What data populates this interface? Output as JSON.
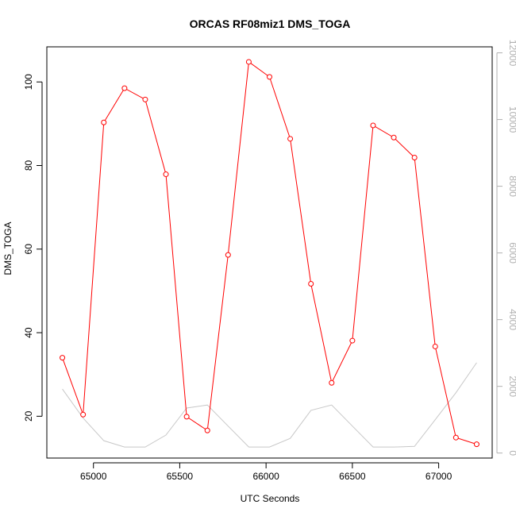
{
  "chart_data": {
    "type": "line",
    "title": "ORCAS RF08miz1 DMS_TOGA",
    "xlabel": "UTC Seconds",
    "ylabel": "DMS_TOGA",
    "xlim": [
      64730,
      67310
    ],
    "ylim": [
      10,
      108.4
    ],
    "y2lim": [
      -150,
      12180
    ],
    "x_ticks": [
      65000,
      65500,
      66000,
      66500,
      67000
    ],
    "y_ticks": [
      20,
      40,
      60,
      80,
      100
    ],
    "y2_ticks": [
      0,
      2000,
      4000,
      6000,
      8000,
      10000,
      12000
    ],
    "series": [
      {
        "axis": "left",
        "color": "#ff0000",
        "markers": "open-circle",
        "x": [
          64820,
          64940,
          65060,
          65180,
          65300,
          65420,
          65540,
          65660,
          65780,
          65900,
          66020,
          66140,
          66260,
          66380,
          66500,
          66620,
          66740,
          66860,
          66980,
          67100,
          67220
        ],
        "values": [
          34.0,
          20.4,
          90.3,
          98.5,
          95.8,
          77.9,
          19.9,
          16.6,
          58.6,
          104.8,
          101.2,
          86.4,
          51.7,
          28.0,
          38.1,
          89.6,
          86.7,
          81.9,
          36.7,
          14.9,
          13.3
        ]
      },
      {
        "axis": "right",
        "color": "#c8c8c8",
        "markers": "none",
        "x": [
          64820,
          64940,
          65060,
          65180,
          65300,
          65420,
          65540,
          65660,
          65780,
          65900,
          66020,
          66140,
          66260,
          66380,
          66500,
          66620,
          66740,
          66860,
          66980,
          67100,
          67220
        ],
        "values": [
          1920,
          1050,
          370,
          180,
          180,
          540,
          1350,
          1440,
          810,
          180,
          180,
          440,
          1280,
          1440,
          810,
          180,
          180,
          200,
          1000,
          1810,
          2710
        ]
      }
    ]
  }
}
